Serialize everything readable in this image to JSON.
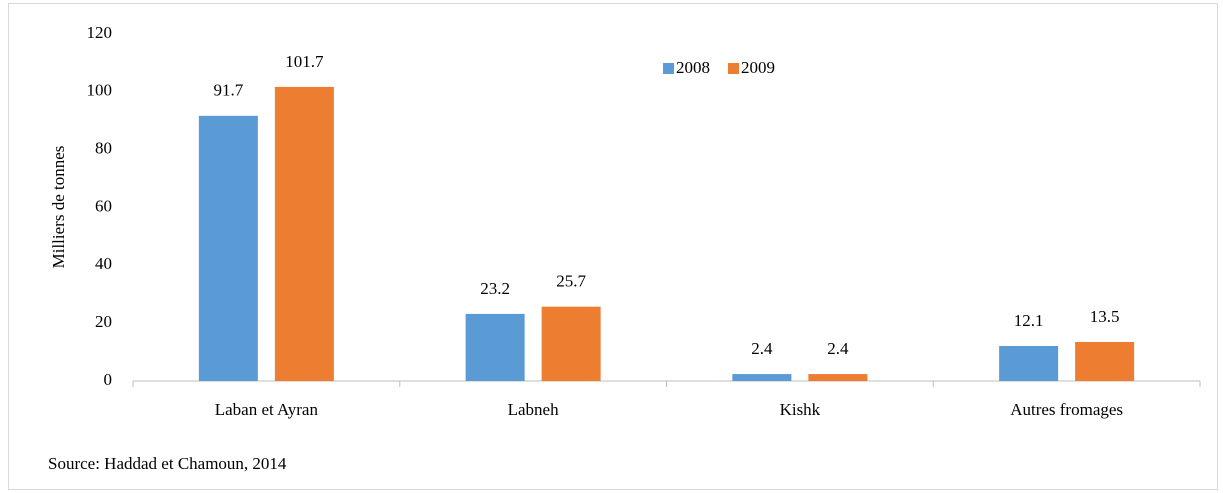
{
  "chart_data": {
    "type": "bar",
    "categories": [
      "Laban et Ayran",
      "Labneh",
      "Kishk",
      "Autres fromages"
    ],
    "series": [
      {
        "name": "2008",
        "color": "#5b9bd5",
        "values": [
          91.7,
          23.2,
          2.4,
          12.1
        ]
      },
      {
        "name": "2009",
        "color": "#ed7d31",
        "values": [
          101.7,
          25.7,
          2.4,
          13.5
        ]
      }
    ],
    "ylabel": "Milliers de tonnes",
    "ylim": [
      0,
      120
    ],
    "yticks": [
      0,
      20,
      40,
      60,
      80,
      100,
      120
    ],
    "grid": false,
    "legend": "top",
    "source": "Source: Haddad et Chamoun, 2014"
  }
}
